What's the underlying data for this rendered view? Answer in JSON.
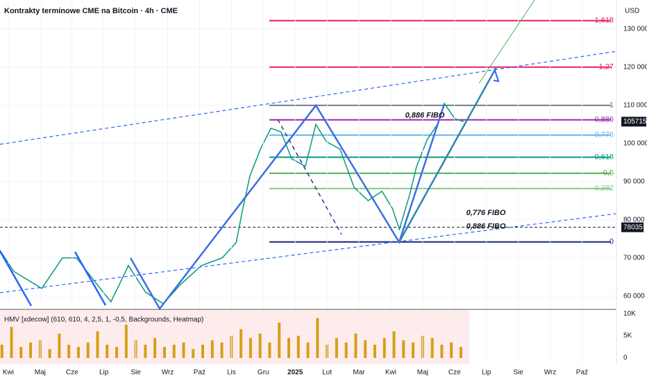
{
  "chart_data": [
    {
      "type": "line",
      "title": "Kontrakty terminowe CME na Bitcoin · 4h · CME",
      "currency_label": "USD",
      "x": [
        -0.26,
        0.17,
        1.05,
        1.7,
        2.14,
        2.79,
        3.22,
        3.77,
        4.31,
        4.86,
        5.4,
        6.06,
        6.71,
        7.15,
        7.36,
        7.58,
        7.91,
        8.24,
        8.56,
        8.89,
        9.32,
        9.65,
        9.98,
        10.41,
        10.85,
        11.29,
        11.72,
        12.05,
        12.27,
        12.59,
        12.81,
        13.14,
        13.46,
        13.68,
        14.01,
        14.29
      ],
      "values": [
        72000,
        66500,
        62000,
        70000,
        70000,
        63000,
        58500,
        68000,
        61000,
        58000,
        63000,
        68000,
        70000,
        74000,
        83000,
        91500,
        98500,
        104000,
        103000,
        96000,
        94000,
        105000,
        100500,
        98500,
        88500,
        85000,
        87500,
        83000,
        77500,
        86500,
        94000,
        101000,
        105000,
        110500,
        106500,
        105715
      ],
      "color": "#089981",
      "xlim": [
        -0.26,
        19.08
      ],
      "ylim": [
        56700,
        137600
      ],
      "yticks": [
        {
          "value": 60000,
          "label": "60 000"
        },
        {
          "value": 70000,
          "label": "70 000"
        },
        {
          "value": 80000,
          "label": "80 000"
        },
        {
          "value": 90000,
          "label": "90 000"
        },
        {
          "value": 100000,
          "label": "100 000"
        },
        {
          "value": 110000,
          "label": "110 000"
        },
        {
          "value": 120000,
          "label": "120 000"
        },
        {
          "value": 130000,
          "label": "130 000"
        }
      ],
      "grid": true,
      "levels": [
        {
          "label": "1,618",
          "value": 132200,
          "color": "#e91e63"
        },
        {
          "label": "1,27",
          "value": 120000,
          "color": "#e91e63"
        },
        {
          "label": "1",
          "value": 110000,
          "color": "#787b86"
        },
        {
          "label": "0,886",
          "value": 106200,
          "color": "#9c27b0"
        },
        {
          "label": "0,776",
          "value": 102200,
          "color": "#64b5f6"
        },
        {
          "label": "0,618",
          "value": 96400,
          "color": "#089981"
        },
        {
          "label": "0,5",
          "value": 92200,
          "color": "#4caf50"
        },
        {
          "label": "0,382",
          "value": 88200,
          "color": "#81c784"
        },
        {
          "label": "0",
          "value": 74200,
          "color": "#1a237e"
        }
      ],
      "annotations": [
        {
          "text": "0,886 FIBO",
          "value": 107300
        },
        {
          "text": "0,776 FIBO",
          "value": 81800
        },
        {
          "text": "0,886 FIBO",
          "value": 78200
        }
      ],
      "last_price": 105715,
      "marker_price": 78035
    },
    {
      "type": "bar",
      "title": "HMV [xdecow] (610, 610, 4, 2,5, 1, -0,5, Backgrounds, Heatmap)",
      "x": [
        -0.2,
        0.1,
        0.4,
        0.7,
        1.0,
        1.3,
        1.6,
        1.9,
        2.2,
        2.5,
        2.8,
        3.1,
        3.4,
        3.7,
        4.0,
        4.3,
        4.6,
        4.9,
        5.2,
        5.5,
        5.8,
        6.1,
        6.4,
        6.7,
        7.0,
        7.3,
        7.6,
        7.9,
        8.2,
        8.5,
        8.8,
        9.1,
        9.4,
        9.7,
        10.0,
        10.3,
        10.6,
        10.9,
        11.2,
        11.5,
        11.8,
        12.1,
        12.4,
        12.7,
        13.0,
        13.3,
        13.6,
        13.9,
        14.2
      ],
      "values": [
        3000,
        7000,
        2500,
        3500,
        4000,
        2000,
        5500,
        3000,
        2500,
        3500,
        6000,
        3000,
        2500,
        7500,
        4000,
        3000,
        4500,
        2500,
        3000,
        3500,
        2000,
        3000,
        4000,
        3500,
        5000,
        6500,
        4500,
        5500,
        3500,
        8000,
        4500,
        5000,
        3500,
        9000,
        3000,
        4500,
        3500,
        5500,
        4000,
        3000,
        4500,
        6000,
        4000,
        3500,
        5000,
        4500,
        3000,
        3500,
        2500
      ],
      "color": "#d4a017",
      "xlim": [
        -0.26,
        19.08
      ],
      "ylim": [
        -1400,
        10800
      ],
      "yticks": [
        0,
        {
          "value": 5000,
          "label": "5K"
        },
        {
          "value": 10000,
          "label": "10K"
        }
      ],
      "xticks": [
        {
          "value": 0,
          "label": "Kwi"
        },
        {
          "value": 1,
          "label": "Maj"
        },
        {
          "value": 2,
          "label": "Cze"
        },
        {
          "value": 3,
          "label": "Lip"
        },
        {
          "value": 4,
          "label": "Sie"
        },
        {
          "value": 5,
          "label": "Wrz"
        },
        {
          "value": 6,
          "label": "Paź"
        },
        {
          "value": 7,
          "label": "Lis"
        },
        {
          "value": 8,
          "label": "Gru"
        },
        {
          "value": 9,
          "label": "2025"
        },
        {
          "value": 10,
          "label": "Lut"
        },
        {
          "value": 11,
          "label": "Mar"
        },
        {
          "value": 12,
          "label": "Kwi"
        },
        {
          "value": 13,
          "label": "Maj"
        },
        {
          "value": 14,
          "label": "Cze"
        },
        {
          "value": 15,
          "label": "Lip"
        },
        {
          "value": 16,
          "label": "Sie"
        },
        {
          "value": 17,
          "label": "Wrz"
        },
        {
          "value": 18,
          "label": "Paź"
        }
      ]
    }
  ]
}
